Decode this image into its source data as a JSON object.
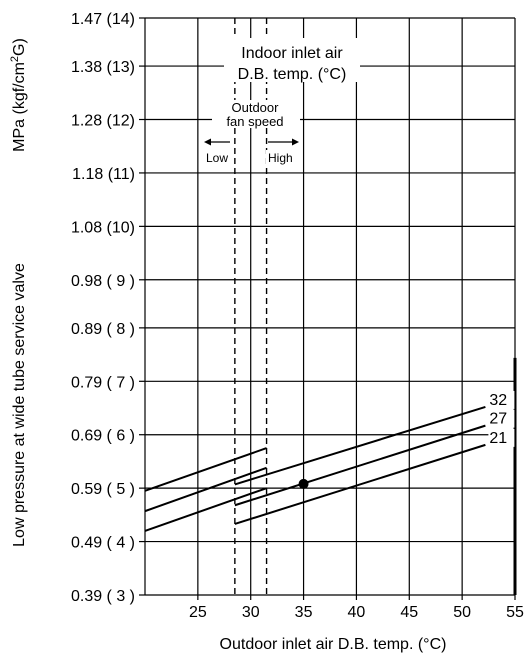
{
  "chart_data": {
    "type": "line",
    "xlabel": "Outdoor inlet air D.B. temp. (°C)",
    "ylabel": "Low pressure at wide tube service valve",
    "yunit_label": "MPa (kgf/cm2G)",
    "ylabel_unit_prefix": "MPa (kgf/cm",
    "ylabel_unit_sup": "2",
    "ylabel_unit_suffix": "G)",
    "xlim": [
      20,
      55
    ],
    "ylim": [
      0.39,
      1.47
    ],
    "x_ticks": [
      25,
      30,
      35,
      40,
      45,
      50,
      55
    ],
    "x_tick_labels": [
      "25",
      "30",
      "35",
      "40",
      "45",
      "50",
      "55"
    ],
    "y_ticks": [
      0.39,
      0.49,
      0.59,
      0.69,
      0.79,
      0.89,
      0.98,
      1.08,
      1.18,
      1.28,
      1.38,
      1.47
    ],
    "y_tick_labels": [
      "0.39 ( 3 )",
      "0.49 ( 4 )",
      "0.59 ( 5 )",
      "0.69 ( 6 )",
      "0.79 ( 7 )",
      "0.89 ( 8 )",
      "0.98 ( 9 )",
      "1.08 (10)",
      "1.18 (11)",
      "1.28 (12)",
      "1.38 (13)",
      "1.47 (14)"
    ],
    "grid": true,
    "legend_title_line1": "Indoor inlet air",
    "legend_title_line2": "D.B. temp. (°C)",
    "fan_speed_title_line1": "Outdoor",
    "fan_speed_title_line2": "fan speed",
    "fan_low_label": "Low",
    "fan_high_label": "High",
    "fan_low_boundary_x": 28.5,
    "fan_high_boundary_x": 31.5,
    "series": [
      {
        "name": "32",
        "segments": [
          {
            "x": [
              20,
              31.5
            ],
            "y": [
              0.585,
              0.665
            ]
          },
          {
            "x": [
              28.5,
              52.2
            ],
            "y": [
              0.597,
              0.742
            ]
          }
        ]
      },
      {
        "name": "27",
        "segments": [
          {
            "x": [
              20,
              31.5
            ],
            "y": [
              0.547,
              0.628
            ]
          },
          {
            "x": [
              28.5,
              52.2
            ],
            "y": [
              0.558,
              0.707
            ]
          }
        ]
      },
      {
        "name": "21",
        "segments": [
          {
            "x": [
              20,
              31.5
            ],
            "y": [
              0.51,
              0.59
            ]
          },
          {
            "x": [
              28.5,
              52.2
            ],
            "y": [
              0.523,
              0.671
            ]
          }
        ]
      }
    ],
    "marker_point": {
      "x": 35,
      "y": 0.598
    }
  }
}
